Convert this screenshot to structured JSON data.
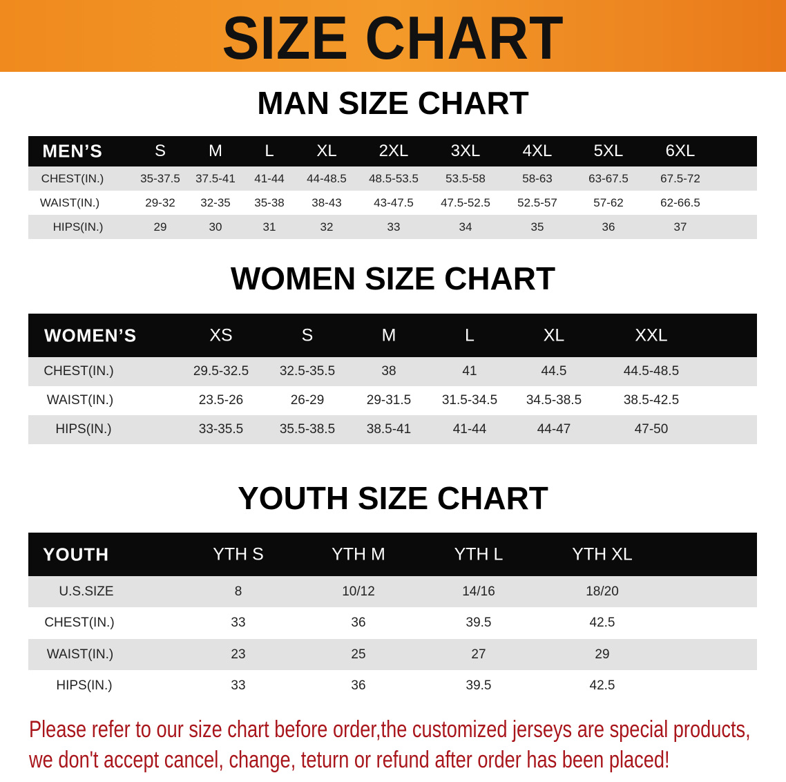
{
  "banner": {
    "title": "SIZE CHART",
    "color": "#f08a1e"
  },
  "men": {
    "title": "MAN SIZE CHART",
    "header": "MEN’S",
    "sizes": [
      "S",
      "M",
      "L",
      "XL",
      "2XL",
      "3XL",
      "4XL",
      "5XL",
      "6XL"
    ],
    "rows": [
      {
        "label": "CHEST(IN.)",
        "values": [
          "35-37.5",
          "37.5-41",
          "41-44",
          "44-48.5",
          "48.5-53.5",
          "53.5-58",
          "58-63",
          "63-67.5",
          "67.5-72"
        ]
      },
      {
        "label": "WAIST(IN.)",
        "values": [
          "29-32",
          "32-35",
          "35-38",
          "38-43",
          "43-47.5",
          "47.5-52.5",
          "52.5-57",
          "57-62",
          "62-66.5"
        ]
      },
      {
        "label": "HIPS(IN.)",
        "values": [
          "29",
          "30",
          "31",
          "32",
          "33",
          "34",
          "35",
          "36",
          "37"
        ]
      }
    ]
  },
  "women": {
    "title": "WOMEN SIZE CHART",
    "header": "WOMEN’S",
    "sizes": [
      "XS",
      "S",
      "M",
      "L",
      "XL",
      "XXL"
    ],
    "rows": [
      {
        "label": "CHEST(IN.)",
        "values": [
          "29.5-32.5",
          "32.5-35.5",
          "38",
          "41",
          "44.5",
          "44.5-48.5"
        ]
      },
      {
        "label": "WAIST(IN.)",
        "values": [
          "23.5-26",
          "26-29",
          "29-31.5",
          "31.5-34.5",
          "34.5-38.5",
          "38.5-42.5"
        ]
      },
      {
        "label": "HIPS(IN.)",
        "values": [
          "33-35.5",
          "35.5-38.5",
          "38.5-41",
          "41-44",
          "44-47",
          "47-50"
        ]
      }
    ]
  },
  "youth": {
    "title": "YOUTH SIZE CHART",
    "header": "YOUTH",
    "sizes": [
      "YTH S",
      "YTH M",
      "YTH L",
      "YTH XL"
    ],
    "rows": [
      {
        "label": "U.S.SIZE",
        "values": [
          "8",
          "10/12",
          "14/16",
          "18/20"
        ]
      },
      {
        "label": "CHEST(IN.)",
        "values": [
          "33",
          "36",
          "39.5",
          "42.5"
        ]
      },
      {
        "label": "WAIST(IN.)",
        "values": [
          "23",
          "25",
          "27",
          "29"
        ]
      },
      {
        "label": "HIPS(IN.)",
        "values": [
          "33",
          "36",
          "39.5",
          "42.5"
        ]
      }
    ]
  },
  "notice": {
    "line1": "Please refer to our size chart before order,the customized jerseys are special products,",
    "line2": "we don't accept cancel, change, teturn or refund after order has been placed!",
    "color": "#a8161c"
  }
}
